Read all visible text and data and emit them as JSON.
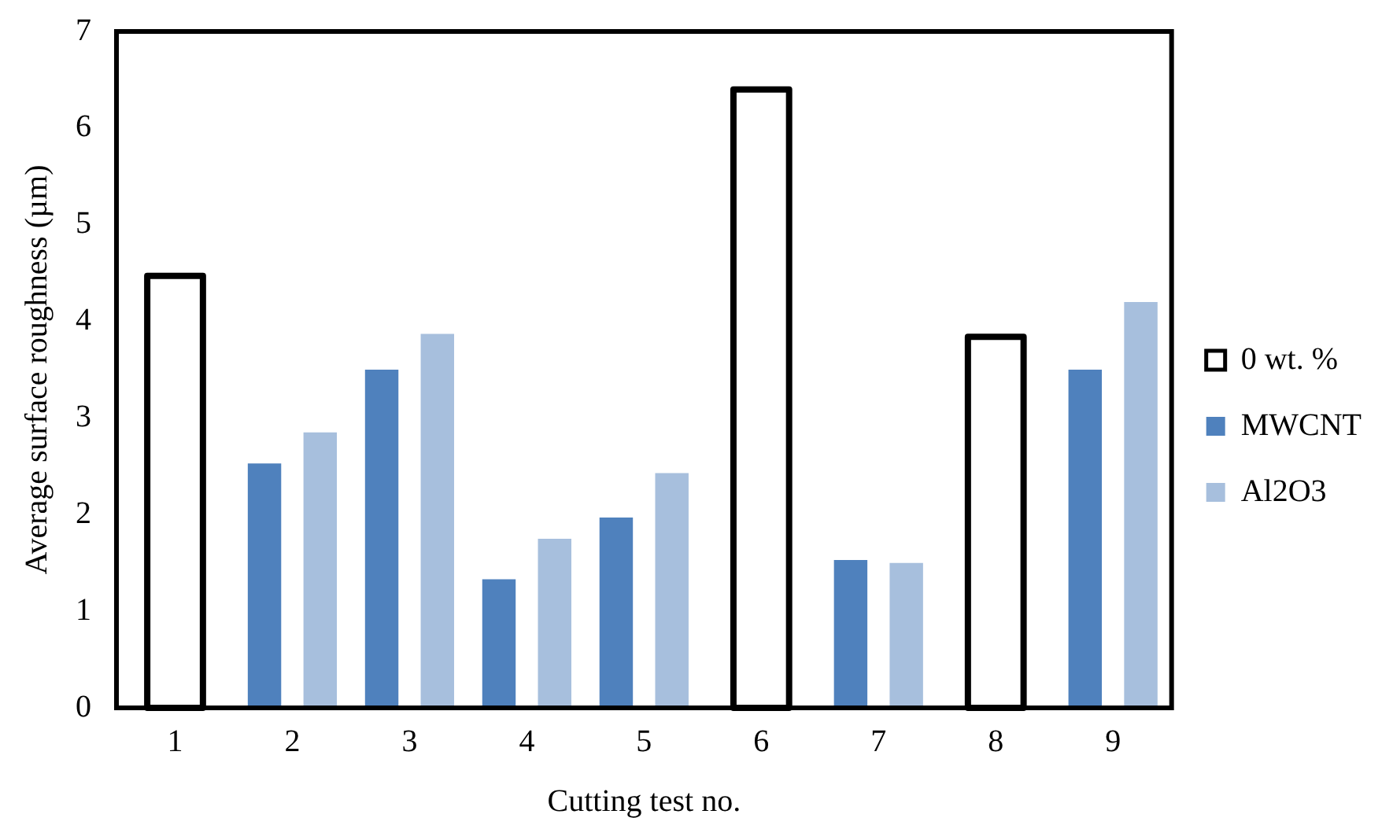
{
  "chart_data": {
    "type": "bar",
    "xlabel": "Cutting test no.",
    "ylabel": "Average surface roughness (µm)",
    "categories": [
      "1",
      "2",
      "3",
      "4",
      "5",
      "6",
      "7",
      "8",
      "9"
    ],
    "series": [
      {
        "name": "0 wt. %",
        "color": "#000000",
        "values": [
          4.47,
          null,
          null,
          null,
          null,
          6.4,
          null,
          3.84,
          null
        ]
      },
      {
        "name": "MWCNT",
        "color": "#4f81bd",
        "values": [
          null,
          2.53,
          3.5,
          1.33,
          1.97,
          null,
          1.53,
          null,
          3.5
        ]
      },
      {
        "name": "Al2O3",
        "color": "#a7bfdd",
        "values": [
          null,
          2.85,
          3.87,
          1.75,
          2.43,
          null,
          1.5,
          null,
          4.2
        ]
      }
    ],
    "ylim": [
      0,
      7
    ],
    "yticks": [
      0,
      1,
      2,
      3,
      4,
      5,
      6,
      7
    ],
    "grid": false,
    "legend": "right"
  }
}
